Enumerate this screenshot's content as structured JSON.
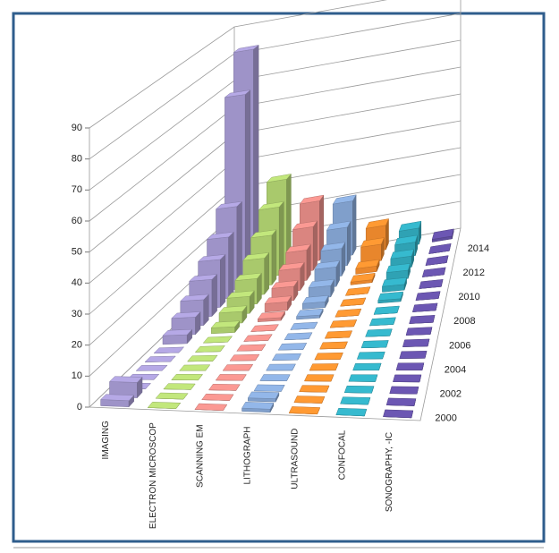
{
  "chart_data": {
    "type": "bar3d",
    "depth_categories": [
      "2000",
      null,
      "2002",
      null,
      "2004",
      null,
      "2006",
      null,
      "2008",
      null,
      "2010",
      null,
      "2012",
      null,
      "2014",
      null
    ],
    "series": [
      {
        "name": "IMAGING",
        "color": "#9e93c8",
        "values": [
          2,
          5,
          0,
          0,
          0,
          0,
          0,
          3,
          6,
          9,
          13,
          17,
          22,
          30,
          68,
          82
        ]
      },
      {
        "name": "ELECTRON MICROSCOP",
        "color": "#a9c96c",
        "values": [
          0,
          0,
          0,
          0,
          0,
          0,
          0,
          0,
          2,
          4,
          6,
          9,
          13,
          18,
          25,
          32
        ]
      },
      {
        "name": "SCANNING EM",
        "color": "#da8580",
        "values": [
          0,
          0,
          0,
          0,
          0,
          0,
          0,
          0,
          0,
          1,
          3,
          5,
          8,
          11,
          16,
          22
        ]
      },
      {
        "name": "LITHOGRAPH",
        "color": "#809fcb",
        "values": [
          1,
          1,
          0,
          0,
          0,
          0,
          0,
          0,
          0,
          1,
          2,
          4,
          7,
          10,
          14,
          20
        ]
      },
      {
        "name": "ULTRASOUND",
        "color": "#e8862c",
        "values": [
          0,
          0,
          0,
          0,
          0,
          0,
          0,
          0,
          0,
          0,
          0,
          0,
          1,
          2,
          6,
          9
        ]
      },
      {
        "name": "CONFOCAL",
        "color": "#2fa2b4",
        "values": [
          0,
          0,
          0,
          0,
          0,
          0,
          0,
          0,
          0,
          0,
          1,
          2,
          3,
          4,
          5,
          6
        ]
      },
      {
        "name": "SONOGRAPHY, -IC",
        "color": "#5e4c9c",
        "values": [
          0,
          0,
          0,
          0,
          0,
          0,
          0,
          0,
          0,
          0,
          0,
          0,
          0,
          0,
          0,
          1
        ]
      }
    ],
    "ylim": [
      0,
      90
    ],
    "yticks": [
      0,
      10,
      20,
      30,
      40,
      50,
      60,
      70,
      80,
      90
    ],
    "grid": true
  }
}
